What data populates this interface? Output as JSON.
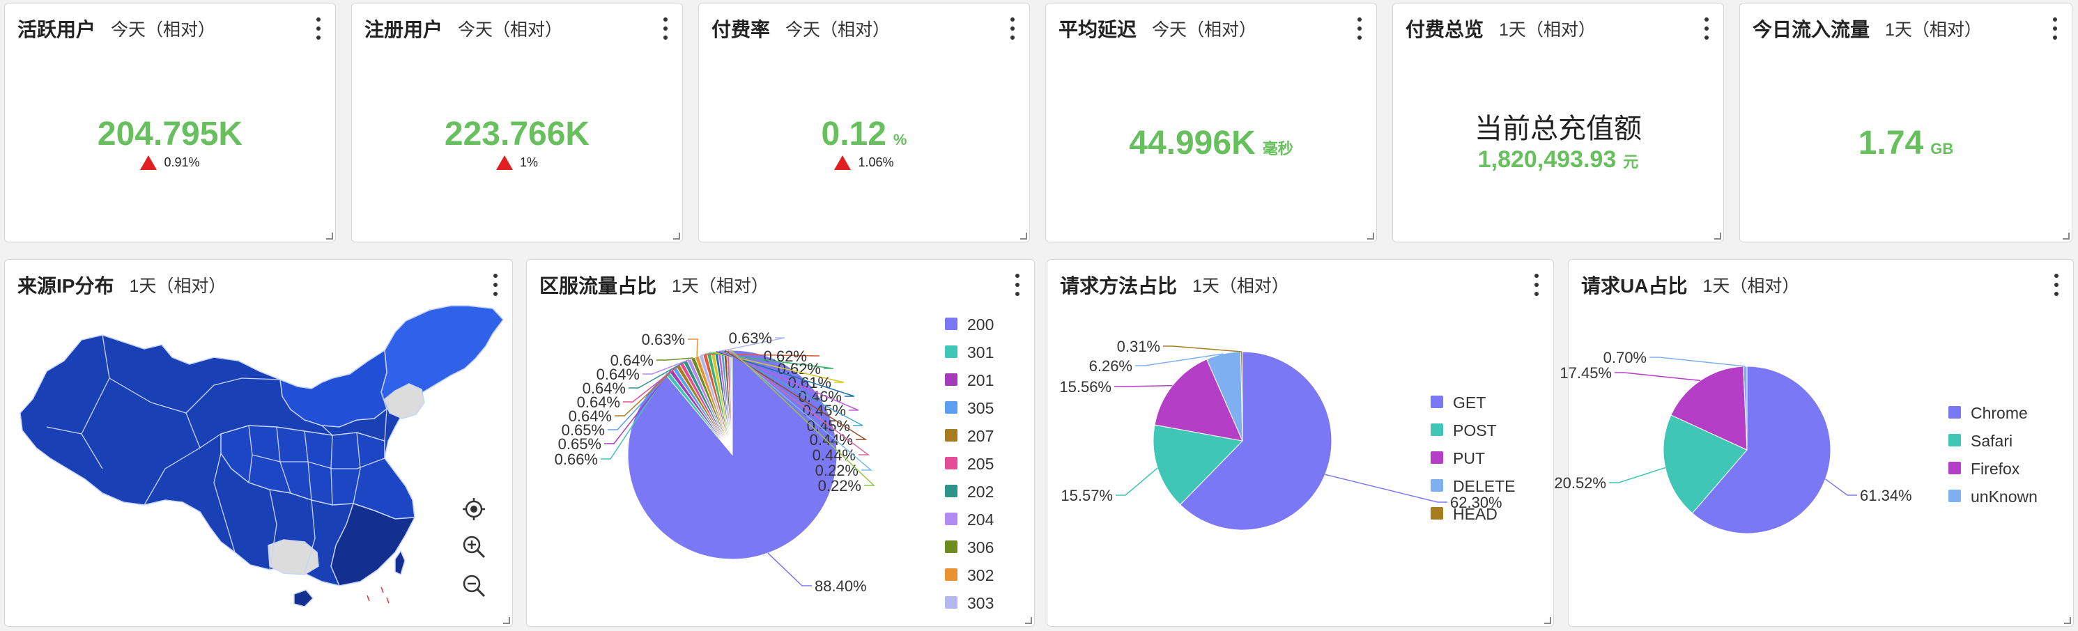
{
  "kpis": [
    {
      "title": "活跃用户",
      "range": "今天（相对）",
      "value": "204.795K",
      "unit": "",
      "delta": "0.91%"
    },
    {
      "title": "注册用户",
      "range": "今天（相对）",
      "value": "223.766K",
      "unit": "",
      "delta": "1%"
    },
    {
      "title": "付费率",
      "range": "今天（相对）",
      "value": "0.12",
      "unit": "%",
      "delta": "1.06%"
    },
    {
      "title": "平均延迟",
      "range": "今天（相对）",
      "value": "44.996K",
      "unit": "毫秒"
    },
    {
      "title": "付费总览",
      "range": "1天（相对）",
      "label": "当前总充值额",
      "value": "1,820,493.93",
      "unit": "元"
    },
    {
      "title": "今日流入流量",
      "range": "1天（相对）",
      "value": "1.74",
      "unit": "GB"
    }
  ],
  "map": {
    "title": "来源IP分布",
    "range": "1天（相对）"
  },
  "colors": {
    "kpi_green": "#67c05d",
    "up_red": "#e02020",
    "map_dark": "#1638a8",
    "map_mid": "#2150d6",
    "map_light": "#2f62e8",
    "map_none": "#dcdcdc"
  },
  "chart_data": [
    {
      "type": "pie",
      "title": "区服流量占比",
      "range": "1天（相对）",
      "legend": [
        "200",
        "301",
        "201",
        "305",
        "207",
        "205",
        "202",
        "204",
        "306",
        "302",
        "303"
      ],
      "values": [
        88.4,
        0.66,
        0.65,
        0.65,
        0.64,
        0.64,
        0.64,
        0.64,
        0.64,
        0.63,
        0.63,
        0.62,
        0.62,
        0.61,
        0.46,
        0.45,
        0.45,
        0.44,
        0.44,
        0.22,
        0.22
      ],
      "labels": [
        "88.40%",
        "0.66%",
        "0.65%",
        "0.65%",
        "0.64%",
        "0.64%",
        "0.64%",
        "0.64%",
        "0.64%",
        "0.63%",
        "0.63%",
        "0.62%",
        "0.62%",
        "0.61%",
        "0.46%",
        "0.45%",
        "0.45%",
        "0.44%",
        "0.44%",
        "0.22%",
        "0.22%"
      ],
      "colors": [
        "#7b78f5",
        "#3fc6b6",
        "#a43cb8",
        "#5c9ff0",
        "#a67d1e",
        "#e54d97",
        "#2f9488",
        "#b28af2",
        "#6f8d1f",
        "#e89333",
        "#b5b8ef",
        "#e05a3b",
        "#3bb56e",
        "#d4c92a",
        "#1f6fa8",
        "#c05fd8",
        "#4aa5c8",
        "#8a4f2a",
        "#d86aa0",
        "#7fb9e8",
        "#9ac24a"
      ]
    },
    {
      "type": "pie",
      "title": "请求方法占比",
      "range": "1天（相对）",
      "categories": [
        "GET",
        "POST",
        "PUT",
        "DELETE",
        "HEAD"
      ],
      "values": [
        62.3,
        15.57,
        15.56,
        6.26,
        0.31
      ],
      "labels": [
        "62.30%",
        "15.57%",
        "15.56%",
        "6.26%",
        "0.31%"
      ],
      "colors": [
        "#7b78f5",
        "#3fc6b6",
        "#b53ec6",
        "#7eaff0",
        "#a67d1e"
      ]
    },
    {
      "type": "pie",
      "title": "请求UA占比",
      "range": "1天（相对）",
      "categories": [
        "Chrome",
        "Safari",
        "Firefox",
        "unKnown"
      ],
      "values": [
        61.34,
        20.52,
        17.45,
        0.7
      ],
      "labels": [
        "61.34%",
        "20.52%",
        "17.45%",
        "0.70%"
      ],
      "colors": [
        "#7b78f5",
        "#3fc6b6",
        "#b53ec6",
        "#7eaff0"
      ]
    }
  ]
}
